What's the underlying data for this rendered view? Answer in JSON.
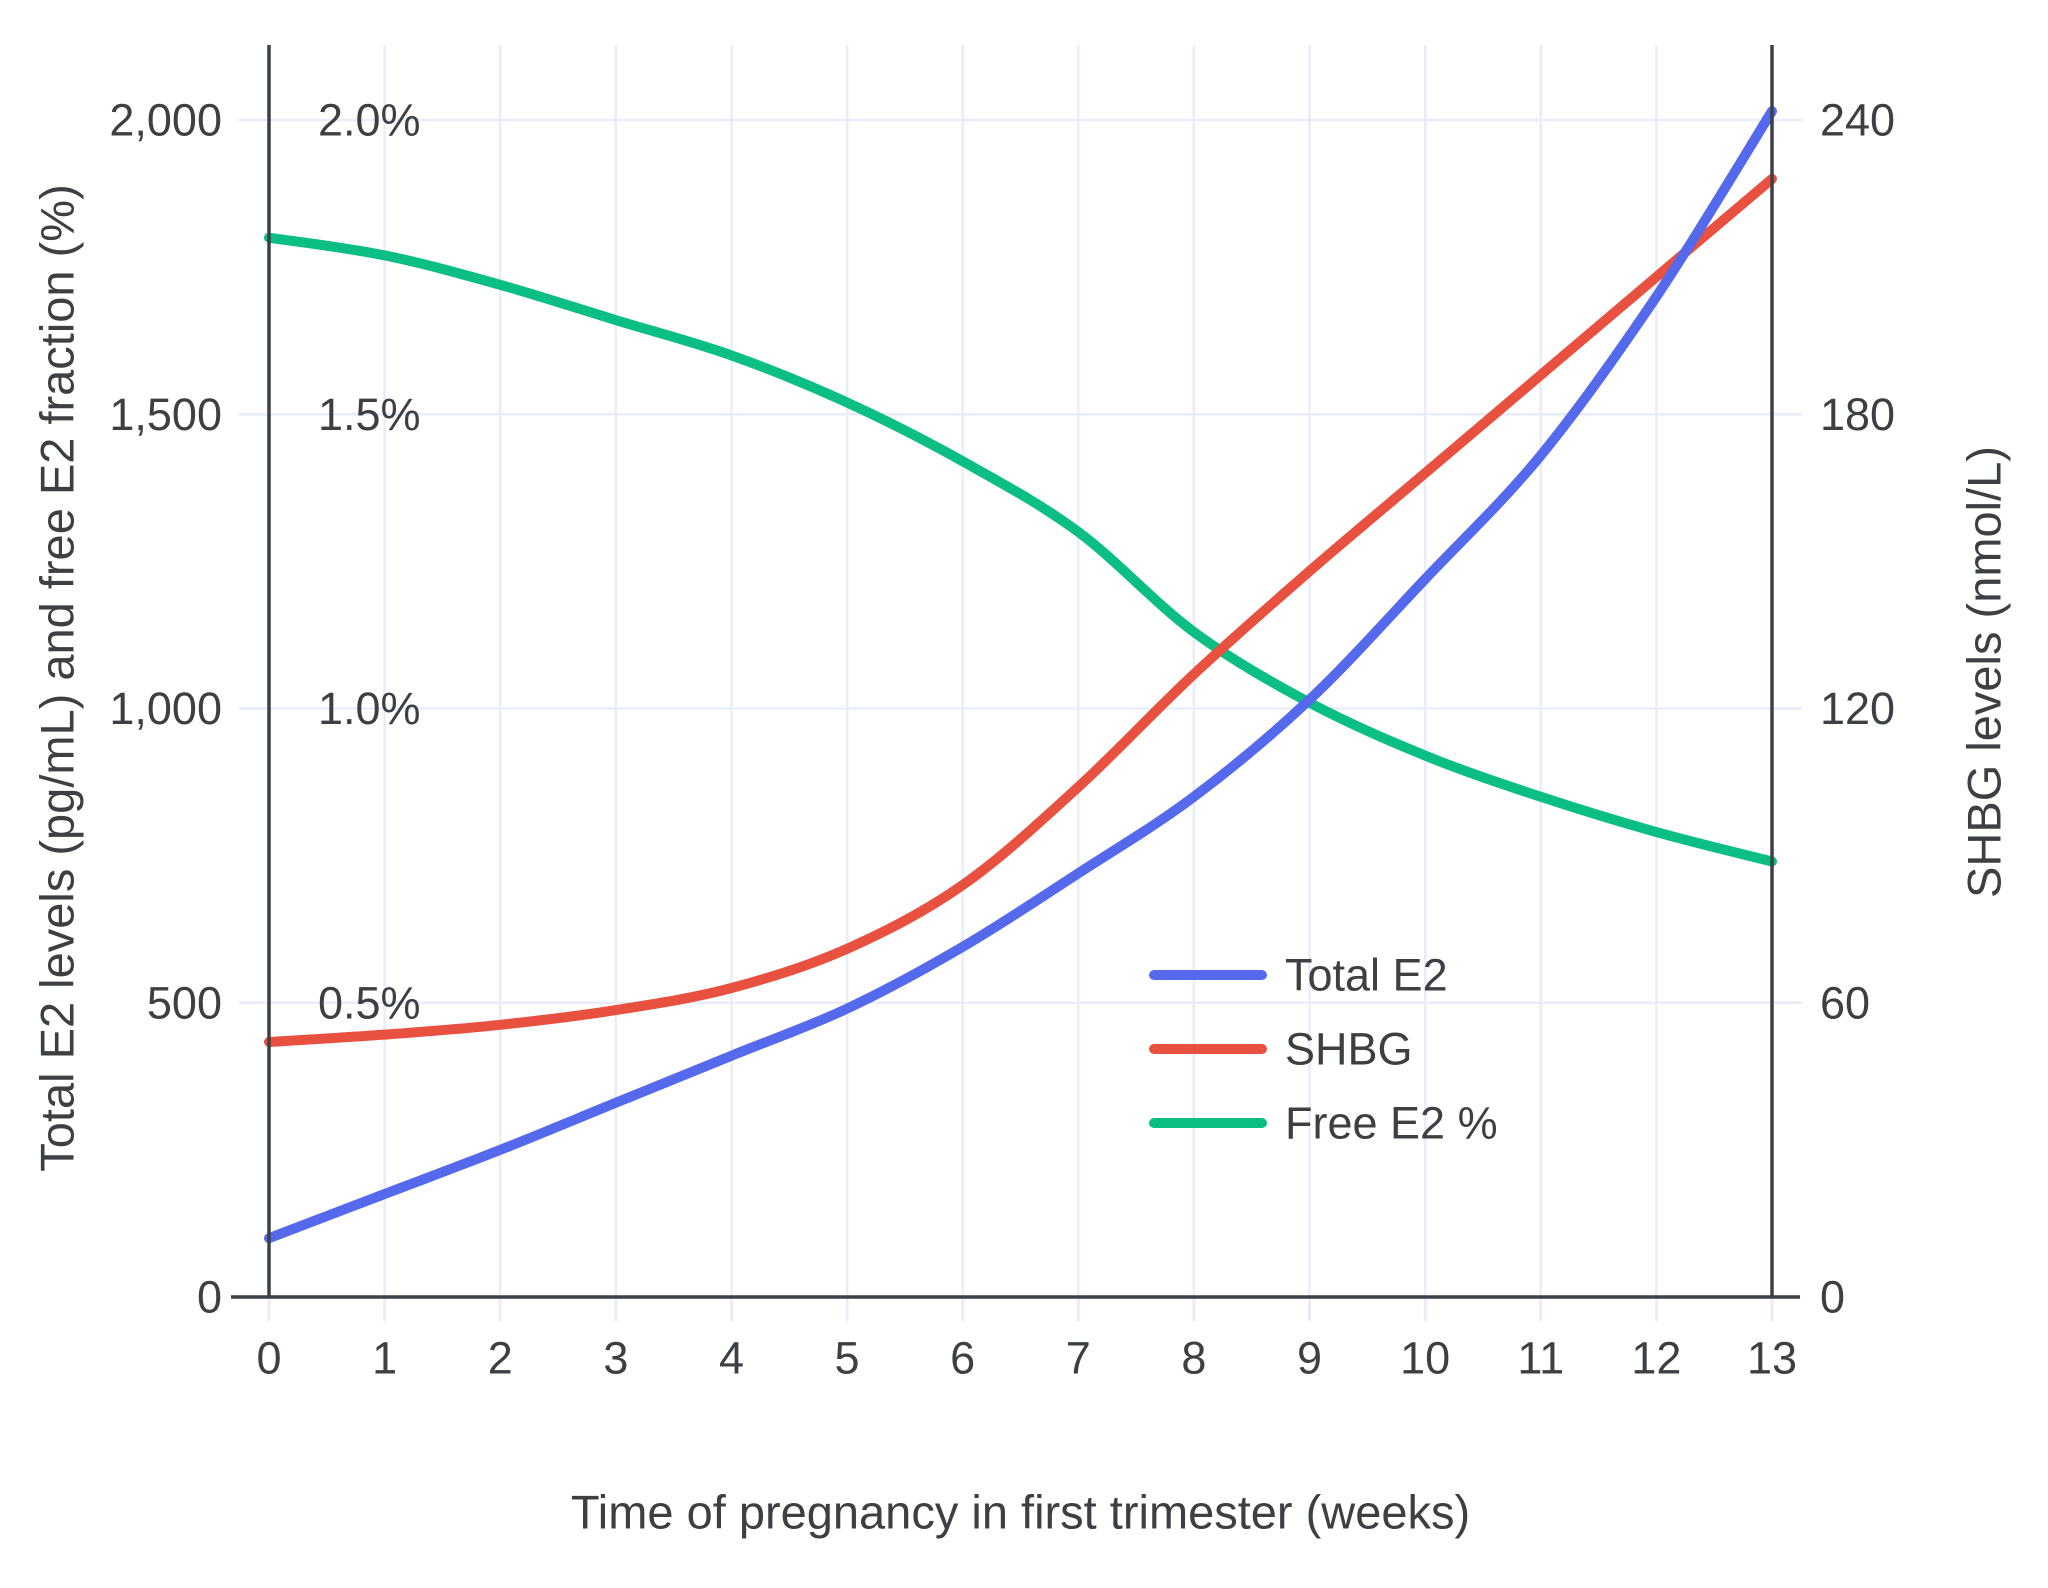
{
  "figure": {
    "kind": "dual-axis line chart",
    "background": "#ffffff"
  },
  "axes": {
    "x": {
      "title": "Time of pregnancy in first trimester (weeks)",
      "tick_labels": [
        "0",
        "1",
        "2",
        "3",
        "4",
        "5",
        "6",
        "7",
        "8",
        "9",
        "10",
        "11",
        "12",
        "13"
      ],
      "tick_values": [
        0,
        1,
        2,
        3,
        4,
        5,
        6,
        7,
        8,
        9,
        10,
        11,
        12,
        13
      ],
      "range": [
        0,
        13
      ]
    },
    "y_left": {
      "title": "Total E2 levels (pg/mL) and free E2 fraction (%)",
      "tick_labels": [
        "0",
        "500",
        "1,000",
        "1,500",
        "2,000"
      ],
      "tick_values": [
        0,
        500,
        1000,
        1500,
        2000
      ],
      "gridline_max": 2000
    },
    "y_left_percent": {
      "tick_labels": [
        "0.5%",
        "1.0%",
        "1.5%",
        "2.0%"
      ],
      "tick_values": [
        0.5,
        1.0,
        1.5,
        2.0
      ],
      "scale_max": 2.0
    },
    "y_right": {
      "title": "SHBG levels (nmol/L)",
      "tick_labels": [
        "0",
        "60",
        "120",
        "180",
        "240"
      ],
      "tick_values": [
        0,
        60,
        120,
        180,
        240
      ],
      "gridline_max": 240
    }
  },
  "legend": {
    "items": [
      {
        "label": "Total E2",
        "color": "#5569ec"
      },
      {
        "label": "SHBG",
        "color": "#e8503f"
      },
      {
        "label": "Free E2 %",
        "color": "#0abe84"
      }
    ]
  },
  "chart_data": {
    "type": "line",
    "xlabel": "Time of pregnancy in first trimester (weeks)",
    "ylabel_left": "Total E2 levels (pg/mL) and free E2 fraction (%)",
    "ylabel_right": "SHBG levels (nmol/L)",
    "x": [
      0,
      1,
      2,
      3,
      4,
      5,
      6,
      7,
      8,
      9,
      10,
      11,
      12,
      13
    ],
    "series": [
      {
        "name": "Total E2",
        "axis": "left",
        "units": "pg/mL",
        "color": "#5569ec",
        "scale_max": 2000,
        "values": [
          100,
          175,
          250,
          330,
          410,
          490,
          595,
          720,
          850,
          1015,
          1220,
          1430,
          1700,
          2015
        ]
      },
      {
        "name": "SHBG",
        "axis": "right",
        "units": "nmol/L",
        "color": "#e8503f",
        "scale_max": 240,
        "values": [
          52,
          53.5,
          55.5,
          58.5,
          63,
          71,
          84,
          104,
          127,
          148,
          168,
          188,
          208,
          228
        ]
      },
      {
        "name": "Free E2 %",
        "axis": "left-percent",
        "units": "%",
        "color": "#0abe84",
        "scale_max": 2.0,
        "values": [
          1.8,
          1.77,
          1.72,
          1.66,
          1.6,
          1.52,
          1.42,
          1.3,
          1.13,
          1.01,
          0.92,
          0.85,
          0.79,
          0.74
        ]
      }
    ],
    "y_left_range": [
      0,
      2000
    ],
    "y_right_range": [
      0,
      240
    ],
    "y_percent_range": [
      0,
      2.0
    ],
    "grid": true,
    "legend_position": "inside lower-right"
  },
  "style": {
    "grid_color": "#e9edf8",
    "axis_color": "#3d4045",
    "text_color": "#3c4043",
    "series_line_width": 10
  }
}
